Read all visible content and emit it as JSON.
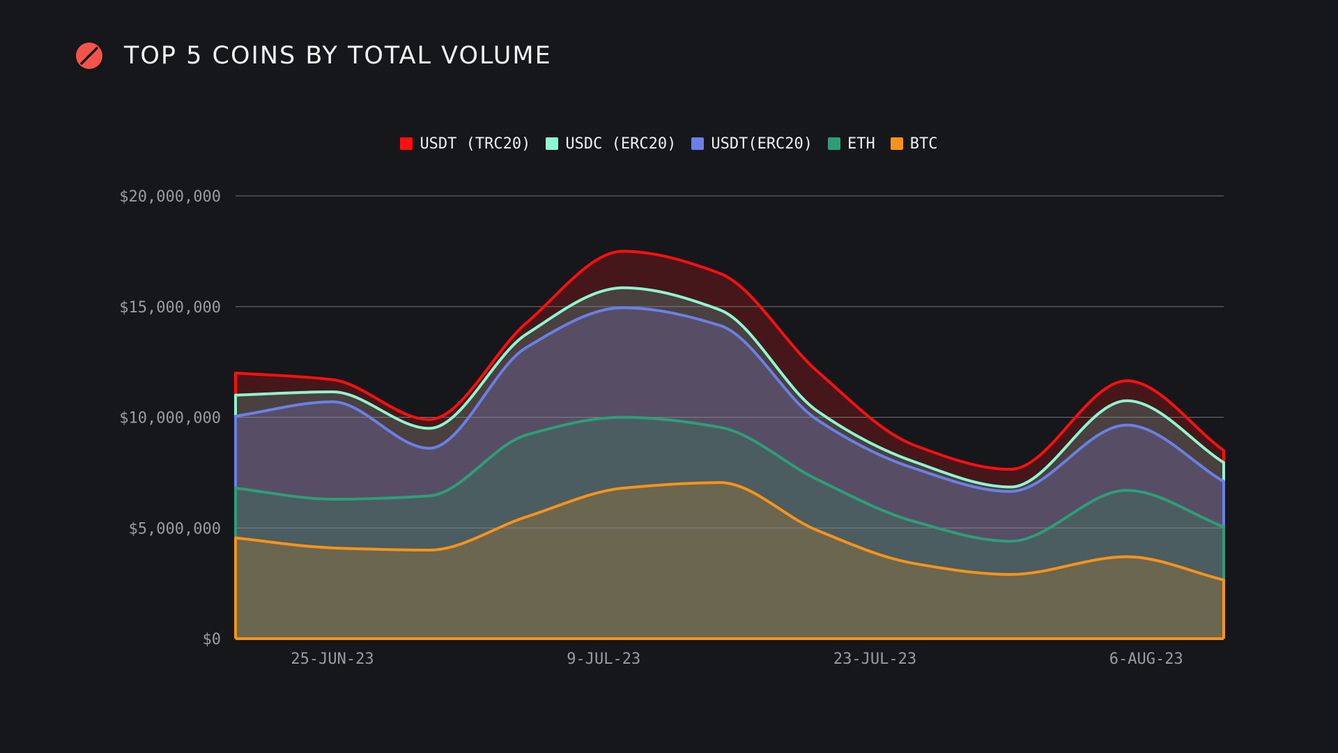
{
  "header": {
    "title": "TOP 5 COINS BY TOTAL VOLUME",
    "logo_icon": "slashed-circle-logo-icon"
  },
  "colors": {
    "background": "#16171b",
    "logo": "#f2544a",
    "gridline": "#8a8b90",
    "tick_text": "#9a9ca3"
  },
  "chart_data": {
    "type": "area",
    "title": "TOP 5 COINS BY TOTAL VOLUME",
    "stacked": true,
    "legend_position": "top-center",
    "grid": true,
    "xlabel": "",
    "ylabel": "",
    "ylim": [
      0,
      20000000
    ],
    "y_ticks": [
      {
        "value": 0,
        "label": "$0"
      },
      {
        "value": 5000000,
        "label": "$5,000,000"
      },
      {
        "value": 10000000,
        "label": "$10,000,000"
      },
      {
        "value": 15000000,
        "label": "$15,000,000"
      },
      {
        "value": 20000000,
        "label": "$20,000,000"
      }
    ],
    "x": [
      "2023-06-20",
      "2023-06-25",
      "2023-06-30",
      "2023-07-05",
      "2023-07-10",
      "2023-07-15",
      "2023-07-20",
      "2023-07-25",
      "2023-07-30",
      "2023-08-05",
      "2023-08-10"
    ],
    "x_ticks": [
      {
        "value": "2023-06-25",
        "label": "25-JUN-23"
      },
      {
        "value": "2023-07-09",
        "label": "9-JUL-23"
      },
      {
        "value": "2023-07-23",
        "label": "23-JUL-23"
      },
      {
        "value": "2023-08-06",
        "label": "6-AUG-23"
      }
    ],
    "series": [
      {
        "name": "BTC",
        "color": "#f7931a",
        "fill": "#6b6650",
        "values": [
          4550000,
          4100000,
          4000000,
          5500000,
          6800000,
          7050000,
          4900000,
          3400000,
          2900000,
          3700000,
          2650000
        ]
      },
      {
        "name": "ETH",
        "color": "#2e9e78",
        "fill": "#4b5d60",
        "values": [
          2250000,
          2200000,
          2450000,
          3700000,
          3200000,
          2500000,
          2300000,
          1900000,
          1500000,
          3000000,
          2400000
        ]
      },
      {
        "name": "USDT(ERC20)",
        "color": "#6b7fe6",
        "fill": "#574e65",
        "values": [
          3250000,
          4400000,
          2150000,
          3950000,
          4950000,
          4600000,
          2700000,
          2400000,
          2250000,
          2950000,
          2050000
        ]
      },
      {
        "name": "USDC (ERC20)",
        "color": "#8ef7d0",
        "fill": "#4a403f",
        "values": [
          950000,
          450000,
          900000,
          600000,
          900000,
          700000,
          400000,
          300000,
          200000,
          1100000,
          850000
        ]
      },
      {
        "name": "USDT (TRC20)",
        "color": "#ff0f0f",
        "fill": "#46171a",
        "values": [
          1000000,
          550000,
          400000,
          500000,
          1650000,
          1650000,
          1800000,
          750000,
          800000,
          900000,
          550000
        ]
      }
    ]
  }
}
